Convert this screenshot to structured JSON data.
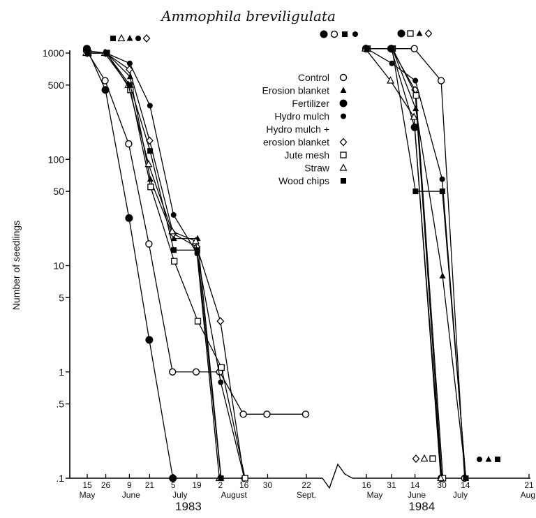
{
  "chart_data": {
    "type": "line",
    "title": "Ammophila breviligulata",
    "ylabel": "Number of seedlings",
    "y_scale": "log",
    "ylim": [
      0.1,
      1000
    ],
    "yticks": [
      {
        "value": 1000,
        "label": "1000"
      },
      {
        "value": 500,
        "label": "500"
      },
      {
        "value": 100,
        "label": "100"
      },
      {
        "value": 50,
        "label": "50"
      },
      {
        "value": 10,
        "label": "10"
      },
      {
        "value": 5,
        "label": "5"
      },
      {
        "value": 1,
        "label": "1"
      },
      {
        "value": 0.5,
        "label": ".5"
      },
      {
        "value": 0.1,
        "label": ".1"
      }
    ],
    "xticks": [
      {
        "date": "1983-05-15",
        "label": "15"
      },
      {
        "date": "1983-05-26",
        "label": "26"
      },
      {
        "date": "1983-06-09",
        "label": "9"
      },
      {
        "date": "1983-06-21",
        "label": "21"
      },
      {
        "date": "1983-07-05",
        "label": "5"
      },
      {
        "date": "1983-07-19",
        "label": "19"
      },
      {
        "date": "1983-08-02",
        "label": "2"
      },
      {
        "date": "1983-08-16",
        "label": "16"
      },
      {
        "date": "1983-08-30",
        "label": "30"
      },
      {
        "date": "1983-09-22",
        "label": "22"
      },
      {
        "date": "1984-05-16",
        "label": "16"
      },
      {
        "date": "1984-05-31",
        "label": "31"
      },
      {
        "date": "1984-06-14",
        "label": "14"
      },
      {
        "date": "1984-06-30",
        "label": "30"
      },
      {
        "date": "1984-07-14",
        "label": "14"
      },
      {
        "date": "1984-08-21",
        "label": "21"
      }
    ],
    "months": [
      {
        "label": "May",
        "date": "1983-05-15"
      },
      {
        "label": "June",
        "date": "1983-06-10"
      },
      {
        "label": "July",
        "date": "1983-07-09"
      },
      {
        "label": "August",
        "date": "1983-08-10"
      },
      {
        "label": "Sept.",
        "date": "1983-09-22"
      },
      {
        "label": "May",
        "date": "1984-05-21"
      },
      {
        "label": "June",
        "date": "1984-06-15"
      },
      {
        "label": "July",
        "date": "1984-07-11"
      },
      {
        "label": "Aug.",
        "date": "1984-08-21"
      }
    ],
    "years": [
      {
        "label": "1983",
        "date": "1983-07-14"
      },
      {
        "label": "1984",
        "date": "1984-06-18"
      }
    ],
    "axis_break": "between 1983-09-22 and 1984-05-16",
    "legend_position": "top-center",
    "series": [
      {
        "name": "Control",
        "marker": "open-circle",
        "points_1983": [
          [
            "1983-05-15",
            1050
          ],
          [
            "1983-05-26",
            550
          ],
          [
            "1983-06-09",
            140
          ],
          [
            "1983-06-21",
            16
          ],
          [
            "1983-07-05",
            1
          ],
          [
            "1983-07-19",
            1
          ],
          [
            "1983-08-02",
            1
          ],
          [
            "1983-08-16",
            0.4
          ],
          [
            "1983-08-30",
            0.4
          ],
          [
            "1983-09-22",
            0.4
          ]
        ],
        "points_1984": [
          [
            "1984-05-16",
            1100
          ],
          [
            "1984-05-31",
            1100
          ],
          [
            "1984-06-14",
            1100
          ],
          [
            "1984-06-30",
            550
          ],
          [
            "1984-07-14",
            0.1
          ]
        ]
      },
      {
        "name": "Erosion blanket",
        "marker": "filled-triangle",
        "points_1983": [
          [
            "1983-05-15",
            1000
          ],
          [
            "1983-05-26",
            1000
          ],
          [
            "1983-06-09",
            600
          ],
          [
            "1983-06-21",
            65
          ],
          [
            "1983-07-05",
            18
          ],
          [
            "1983-07-19",
            18
          ],
          [
            "1983-08-02",
            0.1
          ]
        ],
        "points_1984": [
          [
            "1984-05-16",
            1100
          ],
          [
            "1984-05-31",
            1100
          ],
          [
            "1984-06-14",
            300
          ],
          [
            "1984-06-30",
            8
          ],
          [
            "1984-07-14",
            0.1
          ]
        ]
      },
      {
        "name": "Fertilizer",
        "marker": "large-filled-circle",
        "points_1983": [
          [
            "1983-05-15",
            1100
          ],
          [
            "1983-05-26",
            450
          ],
          [
            "1983-06-09",
            28
          ],
          [
            "1983-06-21",
            2
          ],
          [
            "1983-07-05",
            0.1
          ]
        ],
        "points_1984": [
          [
            "1984-05-16",
            1100
          ],
          [
            "1984-05-31",
            1100
          ],
          [
            "1984-06-14",
            200
          ],
          [
            "1984-06-30",
            0.1
          ]
        ]
      },
      {
        "name": "Hydro mulch",
        "marker": "small-filled-circle",
        "points_1983": [
          [
            "1983-05-15",
            1050
          ],
          [
            "1983-05-26",
            1000
          ],
          [
            "1983-06-09",
            800
          ],
          [
            "1983-06-21",
            320
          ],
          [
            "1983-07-05",
            30
          ],
          [
            "1983-07-19",
            13
          ],
          [
            "1983-08-02",
            0.8
          ],
          [
            "1983-08-16",
            0.1
          ]
        ],
        "points_1984": [
          [
            "1984-05-16",
            1100
          ],
          [
            "1984-05-31",
            800
          ],
          [
            "1984-06-14",
            550
          ],
          [
            "1984-06-30",
            65
          ],
          [
            "1984-07-14",
            0.1
          ]
        ]
      },
      {
        "name": "Hydro mulch + erosion blanket",
        "marker": "open-diamond",
        "points_1983": [
          [
            "1983-05-15",
            1000
          ],
          [
            "1983-05-26",
            1000
          ],
          [
            "1983-06-09",
            700
          ],
          [
            "1983-06-21",
            150
          ],
          [
            "1983-07-05",
            20
          ],
          [
            "1983-07-19",
            15
          ],
          [
            "1983-08-02",
            3
          ],
          [
            "1983-08-16",
            0.1
          ]
        ],
        "points_1984": [
          [
            "1984-05-16",
            1100
          ],
          [
            "1984-05-31",
            1100
          ],
          [
            "1984-06-14",
            450
          ],
          [
            "1984-06-30",
            0.1
          ]
        ]
      },
      {
        "name": "Jute mesh",
        "marker": "open-square",
        "points_1983": [
          [
            "1983-05-15",
            1000
          ],
          [
            "1983-05-26",
            1000
          ],
          [
            "1983-06-09",
            450
          ],
          [
            "1983-06-21",
            55
          ],
          [
            "1983-07-05",
            11
          ],
          [
            "1983-07-19",
            3
          ],
          [
            "1983-08-02",
            1.1
          ],
          [
            "1983-08-16",
            0.1
          ]
        ],
        "points_1984": [
          [
            "1984-05-16",
            1100
          ],
          [
            "1984-05-31",
            1100
          ],
          [
            "1984-06-14",
            400
          ],
          [
            "1984-06-30",
            0.1
          ]
        ]
      },
      {
        "name": "Straw",
        "marker": "open-triangle",
        "points_1983": [
          [
            "1983-05-15",
            1000
          ],
          [
            "1983-05-26",
            1000
          ],
          [
            "1983-06-09",
            500
          ],
          [
            "1983-06-21",
            90
          ],
          [
            "1983-07-05",
            21
          ],
          [
            "1983-07-19",
            17
          ],
          [
            "1983-08-02",
            0.1
          ]
        ],
        "points_1984": [
          [
            "1984-05-16",
            1100
          ],
          [
            "1984-05-31",
            550
          ],
          [
            "1984-06-14",
            250
          ],
          [
            "1984-06-30",
            0.1
          ]
        ]
      },
      {
        "name": "Wood chips",
        "marker": "filled-square",
        "points_1983": [
          [
            "1983-05-15",
            1000
          ],
          [
            "1983-05-26",
            1000
          ],
          [
            "1983-06-09",
            500
          ],
          [
            "1983-06-21",
            120
          ],
          [
            "1983-07-05",
            14
          ],
          [
            "1983-07-19",
            14
          ],
          [
            "1983-08-02",
            0.1
          ]
        ],
        "points_1984": [
          [
            "1984-05-16",
            1100
          ],
          [
            "1984-05-31",
            1100
          ],
          [
            "1984-06-14",
            50
          ],
          [
            "1984-06-30",
            50
          ],
          [
            "1984-07-14",
            0.1
          ]
        ]
      }
    ]
  }
}
